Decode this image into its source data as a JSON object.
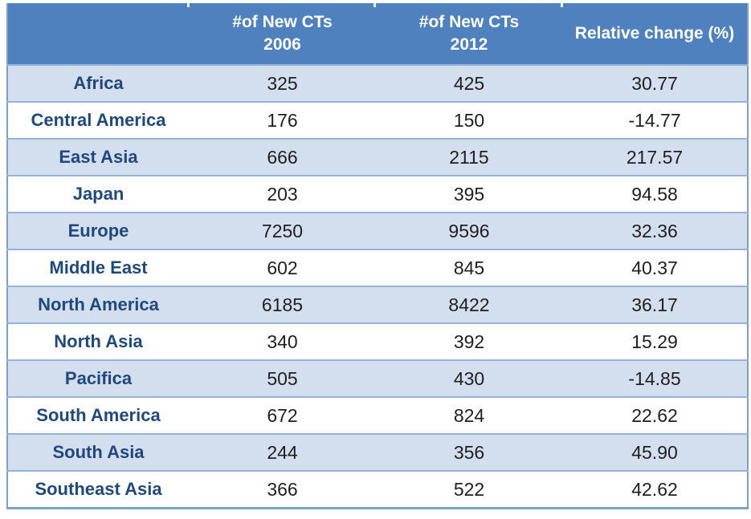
{
  "table": {
    "columns": [
      {
        "label": ""
      },
      {
        "label": "#of New CTs\n2006"
      },
      {
        "label": "#of New CTs\n2012"
      },
      {
        "label": "Relative change (%)"
      }
    ],
    "rows": [
      {
        "region": "Africa",
        "ct_2006": "325",
        "ct_2012": "425",
        "relative_change": "30.77"
      },
      {
        "region": "Central America",
        "ct_2006": "176",
        "ct_2012": "150",
        "relative_change": "-14.77"
      },
      {
        "region": "East Asia",
        "ct_2006": "666",
        "ct_2012": "2115",
        "relative_change": "217.57"
      },
      {
        "region": "Japan",
        "ct_2006": "203",
        "ct_2012": "395",
        "relative_change": "94.58"
      },
      {
        "region": "Europe",
        "ct_2006": "7250",
        "ct_2012": "9596",
        "relative_change": "32.36"
      },
      {
        "region": "Middle East",
        "ct_2006": "602",
        "ct_2012": "845",
        "relative_change": "40.37"
      },
      {
        "region": "North America",
        "ct_2006": "6185",
        "ct_2012": "8422",
        "relative_change": "36.17"
      },
      {
        "region": "North Asia",
        "ct_2006": "340",
        "ct_2012": "392",
        "relative_change": "15.29"
      },
      {
        "region": "Pacifica",
        "ct_2006": "505",
        "ct_2012": "430",
        "relative_change": "-14.85"
      },
      {
        "region": "South America",
        "ct_2006": "672",
        "ct_2012": "824",
        "relative_change": "22.62"
      },
      {
        "region": "South Asia",
        "ct_2006": "244",
        "ct_2012": "356",
        "relative_change": "45.90"
      },
      {
        "region": "Southeast Asia",
        "ct_2006": "366",
        "ct_2012": "522",
        "relative_change": "42.62"
      }
    ],
    "colors": {
      "header_bg": "#4E81BD",
      "header_text": "#FFFFFF",
      "row_alt_bg": "#D3DEEF",
      "row_bg": "#FFFFFF",
      "region_text": "#1F497D",
      "value_text": "#1F1F1F",
      "row_divider": "#95B3D7",
      "outer_border": "#7DA0C8"
    }
  },
  "chart_data": {
    "type": "table",
    "title": "",
    "columns": [
      "",
      "#of New CTs 2006",
      "#of New CTs 2012",
      "Relative change (%)"
    ],
    "rows": [
      [
        "Africa",
        325,
        425,
        30.77
      ],
      [
        "Central America",
        176,
        150,
        -14.77
      ],
      [
        "East Asia",
        666,
        2115,
        217.57
      ],
      [
        "Japan",
        203,
        395,
        94.58
      ],
      [
        "Europe",
        7250,
        9596,
        32.36
      ],
      [
        "Middle East",
        602,
        845,
        40.37
      ],
      [
        "North America",
        6185,
        8422,
        36.17
      ],
      [
        "North Asia",
        340,
        392,
        15.29
      ],
      [
        "Pacifica",
        505,
        430,
        -14.85
      ],
      [
        "South America",
        672,
        824,
        22.62
      ],
      [
        "South Asia",
        244,
        356,
        45.9
      ],
      [
        "Southeast Asia",
        366,
        522,
        42.62
      ]
    ]
  }
}
